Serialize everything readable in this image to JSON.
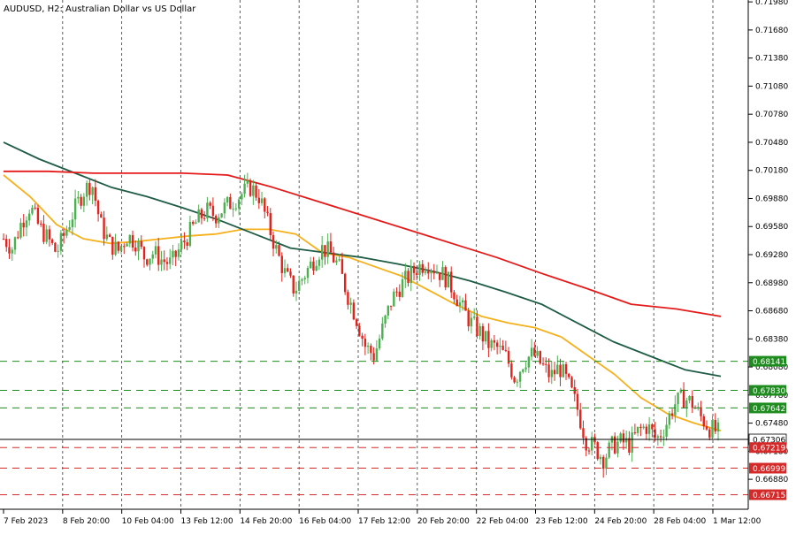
{
  "header": {
    "symbol": "AUDUSD",
    "timeframe": "H2:",
    "description": "Australian Dollar vs US Dollar"
  },
  "colors": {
    "background": "#ffffff",
    "axis": "#000000",
    "grid": "#000000",
    "candle_bull": "#4caf50",
    "candle_bear": "#e0231c",
    "ma_fast": "#f5b01b",
    "ma_mid": "#1f5c44",
    "ma_slow": "#e51b1b",
    "support_line": "#1e8c1e",
    "resistance_line": "#d42a2a",
    "current_price_line": "#000000"
  },
  "chart_data": {
    "type": "candlestick",
    "title": "AUDUSD, H2:  Australian Dollar vs US Dollar",
    "ylim": [
      0.6656,
      0.72
    ],
    "grid": "vertical dashed at date ticks",
    "y_ticks": [
      "0.71980",
      "0.71680",
      "0.71380",
      "0.71080",
      "0.70780",
      "0.70480",
      "0.70180",
      "0.69880",
      "0.69580",
      "0.69280",
      "0.68980",
      "0.68680",
      "0.68380",
      "0.68080",
      "0.67780",
      "0.67480",
      "0.67180",
      "0.66880"
    ],
    "x_ticks": [
      "7 Feb 2023",
      "8 Feb 20:00",
      "10 Feb 04:00",
      "13 Feb 12:00",
      "14 Feb 20:00",
      "16 Feb 04:00",
      "17 Feb 12:00",
      "20 Feb 20:00",
      "22 Feb 04:00",
      "23 Feb 12:00",
      "24 Feb 20:00",
      "28 Feb 04:00",
      "1 Mar 12:00"
    ],
    "price_close_path": [
      0.6945,
      0.6935,
      0.6962,
      0.698,
      0.6958,
      0.6945,
      0.693,
      0.6952,
      0.6975,
      0.6995,
      0.7005,
      0.696,
      0.694,
      0.6932,
      0.6948,
      0.6942,
      0.6925,
      0.693,
      0.6922,
      0.6918,
      0.6935,
      0.695,
      0.6965,
      0.6975,
      0.697,
      0.6978,
      0.6985,
      0.6993,
      0.7,
      0.699,
      0.696,
      0.693,
      0.6905,
      0.689,
      0.6905,
      0.692,
      0.6935,
      0.693,
      0.6915,
      0.6885,
      0.686,
      0.683,
      0.682,
      0.685,
      0.688,
      0.6895,
      0.6905,
      0.6915,
      0.692,
      0.6912,
      0.6905,
      0.689,
      0.687,
      0.6855,
      0.6845,
      0.6832,
      0.6828,
      0.6818,
      0.6795,
      0.6815,
      0.6822,
      0.681,
      0.6798,
      0.6808,
      0.679,
      0.6765,
      0.673,
      0.6722,
      0.671,
      0.6724,
      0.6728,
      0.6725,
      0.674,
      0.6745,
      0.673,
      0.6745,
      0.6768,
      0.6775,
      0.677,
      0.6755,
      0.6743,
      0.6738
    ],
    "moving_averages": [
      {
        "color_key": "ma_fast",
        "values": [
          0.7013,
          0.699,
          0.696,
          0.6945,
          0.694,
          0.6942,
          0.6945,
          0.6948,
          0.695,
          0.6955,
          0.6955,
          0.695,
          0.693,
          0.6925,
          0.6915,
          0.6905,
          0.689,
          0.6875,
          0.6862,
          0.6855,
          0.685,
          0.684,
          0.682,
          0.68,
          0.6775,
          0.6758,
          0.6748,
          0.674
        ]
      },
      {
        "color_key": "ma_mid",
        "values": [
          0.7048,
          0.703,
          0.7015,
          0.7,
          0.699,
          0.6978,
          0.6965,
          0.695,
          0.6935,
          0.693,
          0.6925,
          0.6918,
          0.691,
          0.69,
          0.6888,
          0.6875,
          0.6855,
          0.6835,
          0.682,
          0.6805,
          0.6798
        ]
      },
      {
        "color_key": "ma_slow",
        "values": [
          0.7017,
          0.7017,
          0.7015,
          0.7015,
          0.7015,
          0.7013,
          0.7,
          0.6985,
          0.697,
          0.6955,
          0.694,
          0.6925,
          0.6908,
          0.6892,
          0.6875,
          0.687,
          0.6862
        ]
      }
    ],
    "horizontal_levels": [
      {
        "label": "0.68141",
        "value": 0.68141,
        "kind": "support"
      },
      {
        "label": "0.67830",
        "value": 0.6783,
        "kind": "support"
      },
      {
        "label": "0.67642",
        "value": 0.67642,
        "kind": "support"
      },
      {
        "label": "0.67306",
        "value": 0.67306,
        "kind": "current"
      },
      {
        "label": "0.67219",
        "value": 0.67219,
        "kind": "resistance"
      },
      {
        "label": "0.66999",
        "value": 0.66999,
        "kind": "resistance"
      },
      {
        "label": "0.66715",
        "value": 0.66715,
        "kind": "resistance"
      }
    ]
  }
}
